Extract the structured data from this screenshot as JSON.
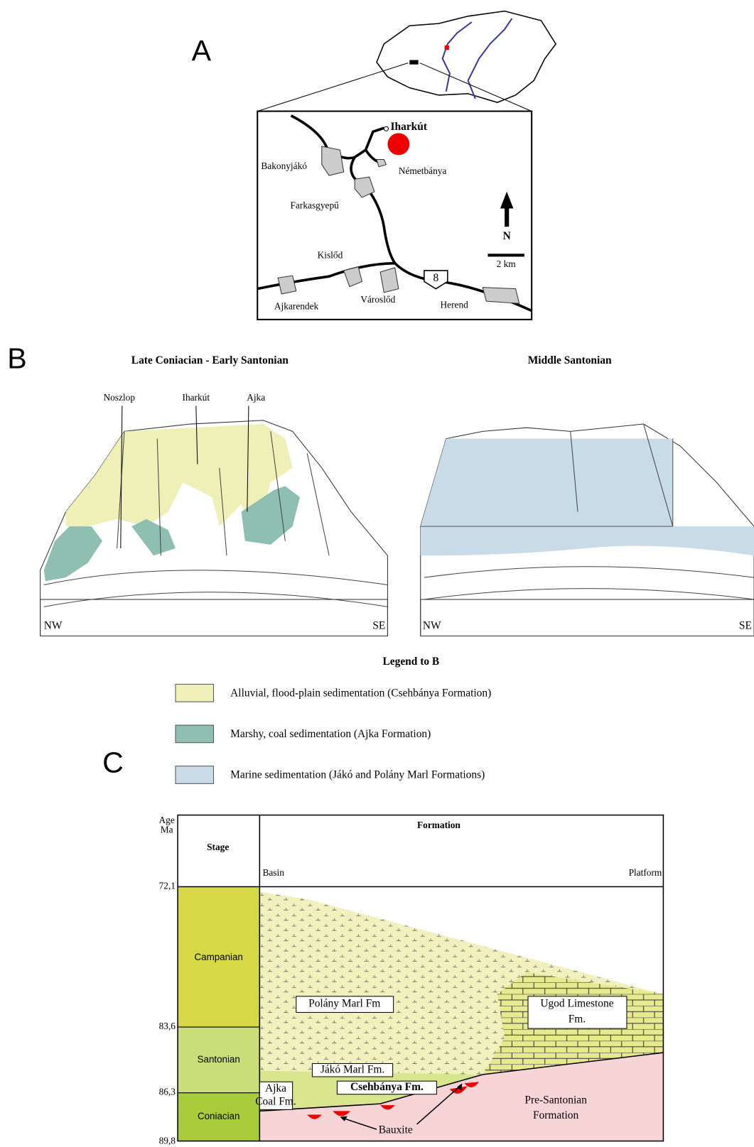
{
  "panel_a": {
    "label": "A",
    "map": {
      "places": [
        "Iharkút",
        "Bakonyjákó",
        "Németbánya",
        "Farkasgyepű",
        "Kislőd",
        "Ajkarendek",
        "Városlőd",
        "Herend"
      ],
      "north": "N",
      "scale": "2 km",
      "road": "8"
    }
  },
  "panel_b": {
    "label": "B",
    "left_title": "Late Coniacian - Early Santonian",
    "right_title": "Middle Santonian",
    "sites": [
      "Noszlop",
      "Iharkút",
      "Ajka"
    ],
    "left_directions": [
      "NW",
      "SE"
    ],
    "right_directions": [
      "NW",
      "SE"
    ],
    "legend": {
      "title": "Legend to B",
      "items": [
        "Alluvial, flood-plain sedimentation (Csehbánya Formation)",
        "Marshy, coal sedimentation (Ajka Formation)",
        "Marine sedimentation (Jákó and Polány Marl Formations)"
      ]
    }
  },
  "panel_c": {
    "label": "C",
    "age_header": [
      "Age",
      "Ma"
    ],
    "stage_header": "Stage",
    "formation_header": "Formation",
    "basin": "Basin",
    "platform": "Platform",
    "ages": [
      "72,1",
      "83,6",
      "86,3",
      "89,8"
    ],
    "stages": [
      "Campanian",
      "Santonian",
      "Coniacian"
    ],
    "units": [
      "Polány Marl Fm",
      "Ugod Limestone",
      "Fm.",
      "Jákó Marl Fm.",
      "Csehbánya Fm.",
      "Ajka",
      "Coal Fm.",
      "Pre-Santonian",
      "Formation",
      "Bauxite"
    ]
  }
}
